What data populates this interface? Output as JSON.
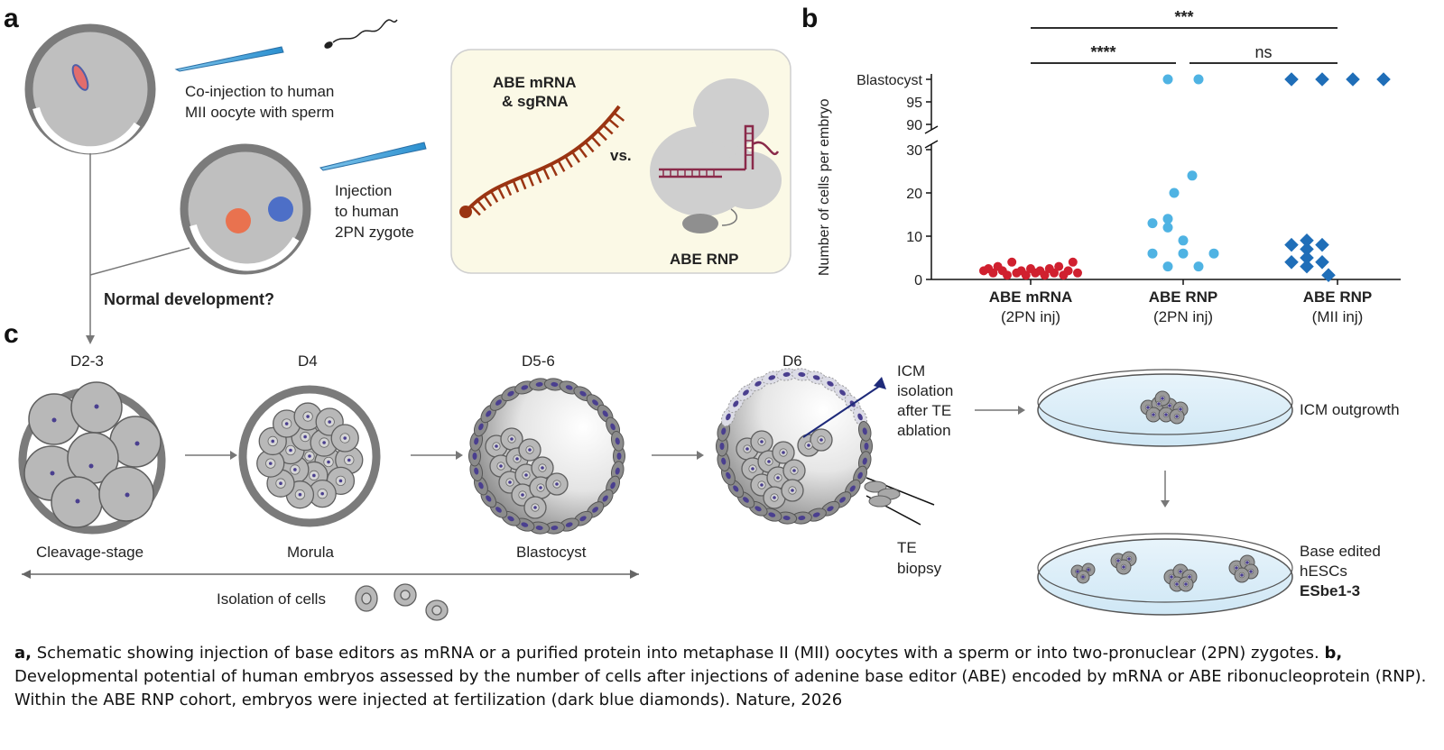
{
  "panels": {
    "a": "a",
    "b": "b",
    "c": "c"
  },
  "panel_a": {
    "coinjection": [
      "Co-injection to human",
      "MII oocyte with sperm"
    ],
    "injection": [
      "Injection",
      "to human",
      "2PN zygote"
    ],
    "normal_development": "Normal development?",
    "mrna_label": [
      "ABE mRNA",
      "& sgRNA"
    ],
    "vs": "vs.",
    "rnp_label": "ABE RNP"
  },
  "chart_data": {
    "type": "scatter",
    "title": "",
    "ylabel": "Number of cells per embryo",
    "categories": [
      {
        "name": "ABE mRNA",
        "sub": "(2PN inj)"
      },
      {
        "name": "ABE RNP",
        "sub": "(2PN inj)"
      },
      {
        "name": "ABE RNP",
        "sub": "(MII inj)"
      }
    ],
    "y_ticks_lower": [
      "0",
      "10",
      "20",
      "30"
    ],
    "y_ticks_upper": [
      "90",
      "95",
      "Blastocyst"
    ],
    "lower_range": [
      0,
      30
    ],
    "upper_range": [
      90,
      100
    ],
    "series": [
      {
        "category": 0,
        "marker": "circle",
        "color": "#d0202f",
        "values": [
          2,
          2.5,
          1.5,
          3,
          2,
          1,
          4,
          1.5,
          2,
          1,
          2.5,
          1.5,
          2,
          1,
          2.5,
          1.5,
          3,
          1,
          2,
          4,
          1.5
        ]
      },
      {
        "category": 1,
        "marker": "circle",
        "color": "#4fb3e3",
        "values": [
          100,
          100,
          24,
          20,
          13,
          12,
          14,
          9,
          6,
          6,
          6,
          3,
          3
        ]
      },
      {
        "category": 2,
        "marker": "diamond",
        "color": "#1f6eb8",
        "values": [
          100,
          100,
          100,
          100,
          8,
          8,
          7,
          9,
          4,
          4,
          5,
          3,
          1
        ]
      }
    ],
    "significance": [
      {
        "from": 0,
        "to": 2,
        "label": "***"
      },
      {
        "from": 0,
        "to": 1,
        "label": "****"
      },
      {
        "from": 1,
        "to": 2,
        "label": "ns"
      }
    ]
  },
  "panel_c": {
    "stages": [
      "D2-3",
      "D4",
      "D5-6",
      "D6"
    ],
    "stage_names": [
      "Cleavage-stage",
      "Morula",
      "Blastocyst"
    ],
    "icm_isolation": [
      "ICM",
      "isolation",
      "after TE",
      "ablation"
    ],
    "te_biopsy": [
      "TE",
      "biopsy"
    ],
    "isolation_of_cells": "Isolation of cells",
    "icm_outgrowth": "ICM outgrowth",
    "base_edited": [
      "Base edited",
      "hESCs"
    ],
    "esbe": "ESbe1-3"
  },
  "caption": {
    "a_label": "a,",
    "a_text": " Schematic showing injection of base editors as mRNA or a purified protein into metaphase II (MII) oocytes with a sperm or into two-pronuclear (2PN) zygotes. ",
    "b_label": "b,",
    "b_text": " Developmental potential of human embryos assessed by the number of cells after injections of adenine base editor (ABE) encoded by mRNA or ABE ribonucleoprotein (RNP). Within the ABE RNP cohort, embryos were injected at fertilization (dark blue diamonds). Nature, 2026"
  },
  "colors": {
    "mrna": "#9a3412",
    "grey_cell": "#b8b8b8",
    "dark_grey": "#808080",
    "nucleus": "#4a3f8f",
    "dish": "#d6ecf7"
  }
}
